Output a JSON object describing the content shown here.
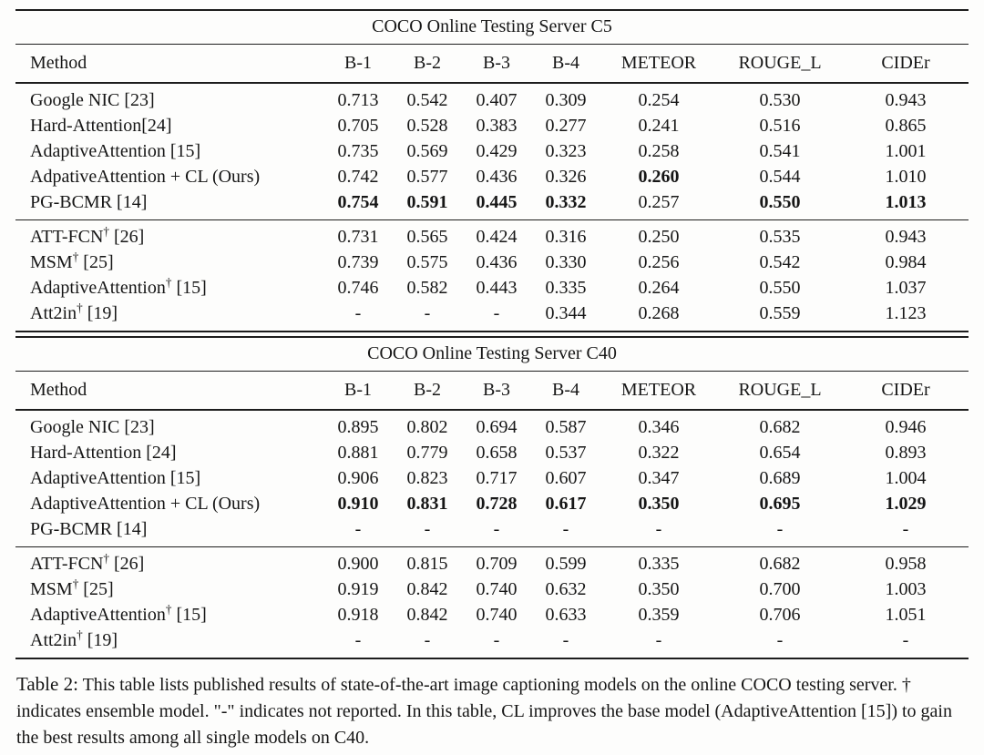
{
  "columns": [
    "Method",
    "B-1",
    "B-2",
    "B-3",
    "B-4",
    "METEOR",
    "ROUGE_L",
    "CIDEr"
  ],
  "tables": [
    {
      "title": "COCO Online Testing Server C5",
      "sections": [
        {
          "rows": [
            {
              "method": "Google NIC [23]",
              "dagger": false,
              "suffix": "",
              "values": [
                "0.713",
                "0.542",
                "0.407",
                "0.309",
                "0.254",
                "0.530",
                "0.943"
              ],
              "bold": [
                0,
                0,
                0,
                0,
                0,
                0,
                0
              ]
            },
            {
              "method": "Hard-Attention[24]",
              "dagger": false,
              "suffix": "",
              "values": [
                "0.705",
                "0.528",
                "0.383",
                "0.277",
                "0.241",
                "0.516",
                "0.865"
              ],
              "bold": [
                0,
                0,
                0,
                0,
                0,
                0,
                0
              ]
            },
            {
              "method": "AdaptiveAttention [15]",
              "dagger": false,
              "suffix": "",
              "values": [
                "0.735",
                "0.569",
                "0.429",
                "0.323",
                "0.258",
                "0.541",
                "1.001"
              ],
              "bold": [
                0,
                0,
                0,
                0,
                0,
                0,
                0
              ]
            },
            {
              "method": "AdpativeAttention + CL (Ours)",
              "dagger": false,
              "suffix": "",
              "values": [
                "0.742",
                "0.577",
                "0.436",
                "0.326",
                "0.260",
                "0.544",
                "1.010"
              ],
              "bold": [
                0,
                0,
                0,
                0,
                1,
                0,
                0
              ]
            },
            {
              "method": "PG-BCMR [14]",
              "dagger": false,
              "suffix": "",
              "values": [
                "0.754",
                "0.591",
                "0.445",
                "0.332",
                "0.257",
                "0.550",
                "1.013"
              ],
              "bold": [
                1,
                1,
                1,
                1,
                0,
                1,
                1
              ]
            }
          ]
        },
        {
          "rows": [
            {
              "method": "ATT-FCN",
              "dagger": true,
              "suffix": " [26]",
              "values": [
                "0.731",
                "0.565",
                "0.424",
                "0.316",
                "0.250",
                "0.535",
                "0.943"
              ],
              "bold": [
                0,
                0,
                0,
                0,
                0,
                0,
                0
              ]
            },
            {
              "method": "MSM",
              "dagger": true,
              "suffix": " [25]",
              "values": [
                "0.739",
                "0.575",
                "0.436",
                "0.330",
                "0.256",
                "0.542",
                "0.984"
              ],
              "bold": [
                0,
                0,
                0,
                0,
                0,
                0,
                0
              ]
            },
            {
              "method": "AdaptiveAttention",
              "dagger": true,
              "suffix": " [15]",
              "values": [
                "0.746",
                "0.582",
                "0.443",
                "0.335",
                "0.264",
                "0.550",
                "1.037"
              ],
              "bold": [
                0,
                0,
                0,
                0,
                0,
                0,
                0
              ]
            },
            {
              "method": "Att2in",
              "dagger": true,
              "suffix": " [19]",
              "values": [
                "-",
                "-",
                "-",
                "0.344",
                "0.268",
                "0.559",
                "1.123"
              ],
              "bold": [
                0,
                0,
                0,
                0,
                0,
                0,
                0
              ]
            }
          ]
        }
      ]
    },
    {
      "title": "COCO Online Testing Server C40",
      "sections": [
        {
          "rows": [
            {
              "method": "Google NIC [23]",
              "dagger": false,
              "suffix": "",
              "values": [
                "0.895",
                "0.802",
                "0.694",
                "0.587",
                "0.346",
                "0.682",
                "0.946"
              ],
              "bold": [
                0,
                0,
                0,
                0,
                0,
                0,
                0
              ]
            },
            {
              "method": "Hard-Attention [24]",
              "dagger": false,
              "suffix": "",
              "values": [
                "0.881",
                "0.779",
                "0.658",
                "0.537",
                "0.322",
                "0.654",
                "0.893"
              ],
              "bold": [
                0,
                0,
                0,
                0,
                0,
                0,
                0
              ]
            },
            {
              "method": "AdaptiveAttention [15]",
              "dagger": false,
              "suffix": "",
              "values": [
                "0.906",
                "0.823",
                "0.717",
                "0.607",
                "0.347",
                "0.689",
                "1.004"
              ],
              "bold": [
                0,
                0,
                0,
                0,
                0,
                0,
                0
              ]
            },
            {
              "method": "AdaptiveAttention + CL (Ours)",
              "dagger": false,
              "suffix": "",
              "values": [
                "0.910",
                "0.831",
                "0.728",
                "0.617",
                "0.350",
                "0.695",
                "1.029"
              ],
              "bold": [
                1,
                1,
                1,
                1,
                1,
                1,
                1
              ]
            },
            {
              "method": "PG-BCMR [14]",
              "dagger": false,
              "suffix": "",
              "values": [
                "-",
                "-",
                "-",
                "-",
                "-",
                "-",
                "-"
              ],
              "bold": [
                0,
                0,
                0,
                0,
                0,
                0,
                0
              ]
            }
          ]
        },
        {
          "rows": [
            {
              "method": "ATT-FCN",
              "dagger": true,
              "suffix": " [26]",
              "values": [
                "0.900",
                "0.815",
                "0.709",
                "0.599",
                "0.335",
                "0.682",
                "0.958"
              ],
              "bold": [
                0,
                0,
                0,
                0,
                0,
                0,
                0
              ]
            },
            {
              "method": "MSM",
              "dagger": true,
              "suffix": " [25]",
              "values": [
                "0.919",
                "0.842",
                "0.740",
                "0.632",
                "0.350",
                "0.700",
                "1.003"
              ],
              "bold": [
                0,
                0,
                0,
                0,
                0,
                0,
                0
              ]
            },
            {
              "method": "AdaptiveAttention",
              "dagger": true,
              "suffix": " [15]",
              "values": [
                "0.918",
                "0.842",
                "0.740",
                "0.633",
                "0.359",
                "0.706",
                "1.051"
              ],
              "bold": [
                0,
                0,
                0,
                0,
                0,
                0,
                0
              ]
            },
            {
              "method": "Att2in",
              "dagger": true,
              "suffix": " [19]",
              "values": [
                "-",
                "-",
                "-",
                "-",
                "-",
                "-",
                "-"
              ],
              "bold": [
                0,
                0,
                0,
                0,
                0,
                0,
                0
              ]
            }
          ]
        }
      ]
    }
  ],
  "caption": {
    "label": "Table 2:",
    "text": "This table lists published results of state-of-the-art image captioning models on the online COCO testing server. † indicates ensemble model. \"-\" indicates not reported. In this table, CL improves the base model (AdaptiveAttention [15]) to gain the best results among all single models on C40."
  }
}
